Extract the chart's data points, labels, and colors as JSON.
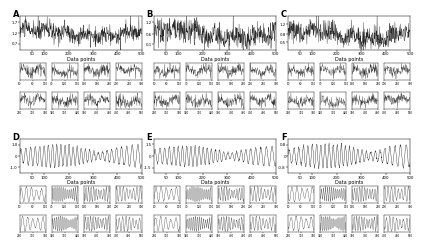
{
  "panels": [
    "A",
    "B",
    "C",
    "D",
    "E",
    "F"
  ],
  "panel_label_fontsize": 6,
  "n_main": 500,
  "n_sub": 100,
  "xlabel": "Data points",
  "xlabel_fontsize": 3.5,
  "tick_fontsize": 2.8,
  "sub_tick_fontsize": 2.0,
  "linewidth_main": 0.28,
  "linewidth_sub": 0.22,
  "background_color": "#ffffff",
  "line_color": "#2a2a2a"
}
